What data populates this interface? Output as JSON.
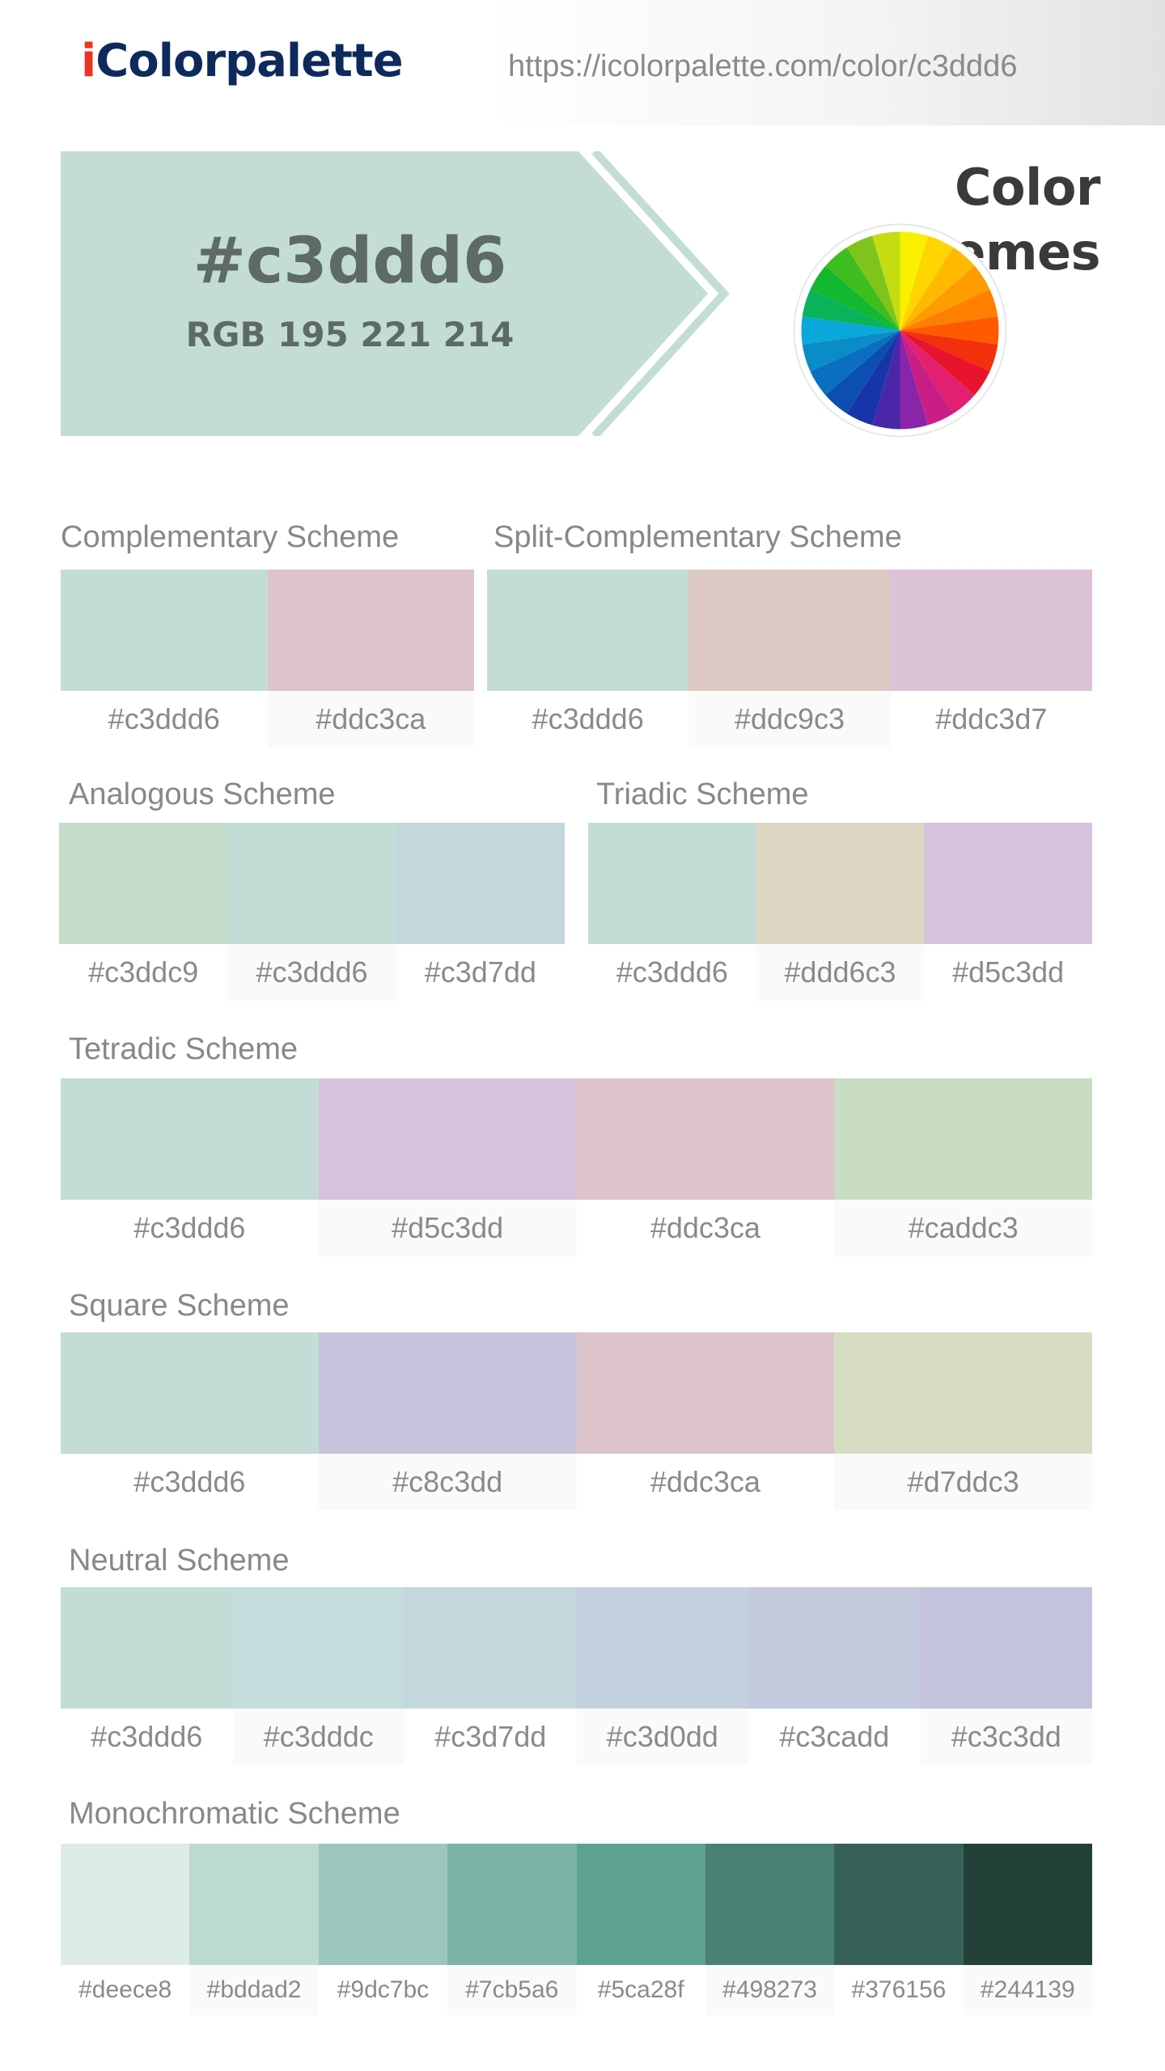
{
  "header": {
    "logo_prefix": "i",
    "logo_rest": "Colorpalette",
    "url": "https://icolorpalette.com/color/c3ddd6"
  },
  "hero": {
    "hex": "#c3ddd6",
    "rgb": "RGB 195 221 214",
    "color": "#c3ddd6"
  },
  "color_schemes_title": "Color Schemes",
  "wheel_colors": [
    "#f9f000",
    "#ffd500",
    "#ffb900",
    "#ff9c00",
    "#ff7f00",
    "#ff5a00",
    "#f2300b",
    "#e8132c",
    "#e2206f",
    "#c91e86",
    "#8a24a8",
    "#4a27a8",
    "#1735a8",
    "#0b4fb0",
    "#0a6fbf",
    "#0a8cc6",
    "#09a8d8",
    "#0ab25a",
    "#12b830",
    "#3ebd1f",
    "#7fc41a",
    "#c4dc12"
  ],
  "schemes": {
    "complementary": {
      "title": "Complementary Scheme",
      "swatches": [
        {
          "hex": "#c3ddd6"
        },
        {
          "hex": "#ddc3ca"
        }
      ]
    },
    "split": {
      "title": "Split-Complementary Scheme",
      "swatches": [
        {
          "hex": "#c3ddd6"
        },
        {
          "hex": "#ddc9c3"
        },
        {
          "hex": "#ddc3d7"
        }
      ]
    },
    "analogous": {
      "title": "Analogous Scheme",
      "swatches": [
        {
          "hex": "#c3ddc9"
        },
        {
          "hex": "#c3ddd6"
        },
        {
          "hex": "#c3d7dd"
        }
      ]
    },
    "triadic": {
      "title": "Triadic Scheme",
      "swatches": [
        {
          "hex": "#c3ddd6"
        },
        {
          "hex": "#ddd6c3"
        },
        {
          "hex": "#d5c3dd"
        }
      ]
    },
    "tetradic": {
      "title": "Tetradic Scheme",
      "swatches": [
        {
          "hex": "#c3ddd6"
        },
        {
          "hex": "#d5c3dd"
        },
        {
          "hex": "#ddc3ca"
        },
        {
          "hex": "#caddc3"
        }
      ]
    },
    "square": {
      "title": "Square Scheme",
      "swatches": [
        {
          "hex": "#c3ddd6"
        },
        {
          "hex": "#c8c3dd"
        },
        {
          "hex": "#ddc3ca"
        },
        {
          "hex": "#d7ddc3"
        }
      ]
    },
    "neutral": {
      "title": "Neutral Scheme",
      "swatches": [
        {
          "hex": "#c3ddd6"
        },
        {
          "hex": "#c3dddc"
        },
        {
          "hex": "#c3d7dd"
        },
        {
          "hex": "#c3d0dd"
        },
        {
          "hex": "#c3cadd"
        },
        {
          "hex": "#c3c3dd"
        }
      ]
    },
    "monochromatic": {
      "title": "Monochromatic Scheme",
      "swatches": [
        {
          "hex": "#deece8"
        },
        {
          "hex": "#bddad2"
        },
        {
          "hex": "#9dc7bc"
        },
        {
          "hex": "#7cb5a6"
        },
        {
          "hex": "#5ca28f"
        },
        {
          "hex": "#498273"
        },
        {
          "hex": "#376156"
        },
        {
          "hex": "#244139"
        }
      ]
    }
  }
}
